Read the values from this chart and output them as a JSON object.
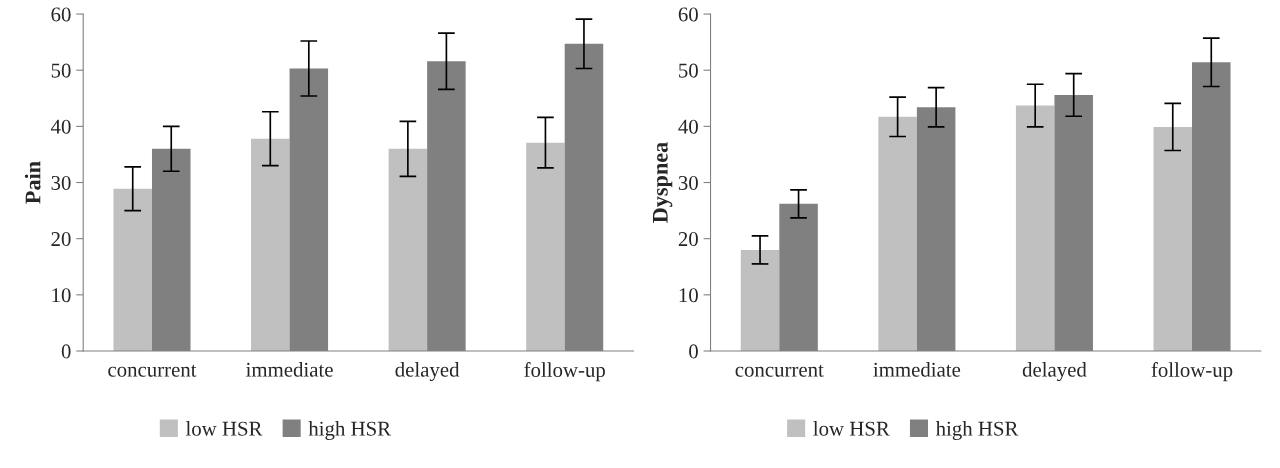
{
  "chart_data": [
    {
      "type": "bar",
      "ylabel": "Pain",
      "categories": [
        "concurrent",
        "immediate",
        "delayed",
        "follow-up"
      ],
      "series": [
        {
          "name": "low HSR",
          "color": "#c0c0c0",
          "values": [
            28.9,
            37.8,
            36.0,
            37.1
          ],
          "errors": [
            3.9,
            4.8,
            4.9,
            4.5
          ]
        },
        {
          "name": "high HSR",
          "color": "#808080",
          "values": [
            36.0,
            50.3,
            51.6,
            54.7
          ],
          "errors": [
            4.0,
            4.9,
            5.0,
            4.4
          ]
        }
      ],
      "ylim": [
        0,
        60
      ],
      "yticks": [
        0,
        10,
        20,
        30,
        40,
        50,
        60
      ],
      "grid": false,
      "legend": "bottom"
    },
    {
      "type": "bar",
      "ylabel": "Dyspnea",
      "categories": [
        "concurrent",
        "immediate",
        "delayed",
        "follow-up"
      ],
      "series": [
        {
          "name": "low HSR",
          "color": "#c0c0c0",
          "values": [
            18.0,
            41.7,
            43.7,
            39.9
          ],
          "errors": [
            2.5,
            3.5,
            3.8,
            4.2
          ]
        },
        {
          "name": "high HSR",
          "color": "#808080",
          "values": [
            26.2,
            43.4,
            45.6,
            51.4
          ],
          "errors": [
            2.5,
            3.5,
            3.8,
            4.3
          ]
        }
      ],
      "ylim": [
        0,
        60
      ],
      "yticks": [
        0,
        10,
        20,
        30,
        40,
        50,
        60
      ],
      "grid": false,
      "legend": "bottom"
    }
  ]
}
